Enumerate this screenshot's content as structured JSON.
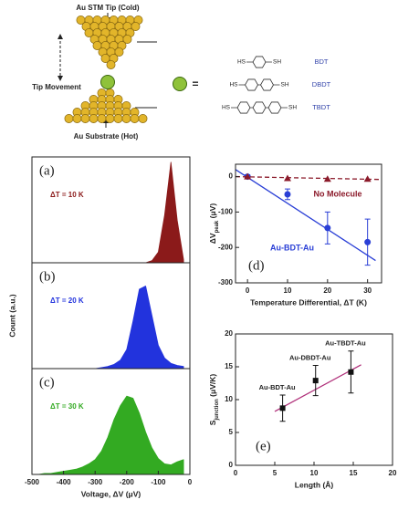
{
  "diagram": {
    "tip_label": "Au STM Tip (Cold)",
    "movement_label": "Tip Movement",
    "substrate_label": "Au Substrate (Hot)",
    "equals": "=",
    "molecules": [
      {
        "left": "HS",
        "right": "SH",
        "name": "BDT"
      },
      {
        "left": "HS",
        "right": "SH",
        "name": "DBDT"
      },
      {
        "left": "HS",
        "right": "SH",
        "name": "TBDT"
      }
    ]
  },
  "chart_data": [
    {
      "type": "area",
      "panel": "(a)",
      "annotation": "ΔT = 10 K",
      "color": "#8b1a1a",
      "x": [
        -500,
        -480,
        -460,
        -440,
        -420,
        -400,
        -380,
        -360,
        -340,
        -320,
        -300,
        -280,
        -260,
        -240,
        -220,
        -200,
        -180,
        -160,
        -140,
        -120,
        -100,
        -80,
        -60,
        -40,
        -20
      ],
      "values": [
        0,
        0,
        0,
        0,
        0,
        0,
        0,
        0,
        0,
        0,
        0,
        0,
        0,
        0,
        0,
        0,
        0,
        0,
        0,
        2,
        10,
        45,
        95,
        40,
        3
      ],
      "xlim": [
        -500,
        0
      ],
      "ylim": [
        0,
        100
      ]
    },
    {
      "type": "area",
      "panel": "(b)",
      "annotation": "ΔT = 20 K",
      "color": "#2233dd",
      "ylabel": "Count (a.u.)",
      "x": [
        -500,
        -480,
        -460,
        -440,
        -420,
        -400,
        -380,
        -360,
        -340,
        -320,
        -300,
        -280,
        -260,
        -240,
        -220,
        -200,
        -180,
        -160,
        -140,
        -120,
        -100,
        -80,
        -60,
        -40,
        -20
      ],
      "values": [
        0,
        0,
        0,
        0,
        0,
        0,
        0,
        0,
        0,
        0,
        0,
        1,
        2,
        4,
        8,
        18,
        45,
        75,
        78,
        50,
        22,
        10,
        5,
        3,
        2
      ],
      "xlim": [
        -500,
        0
      ],
      "ylim": [
        0,
        100
      ]
    },
    {
      "type": "area",
      "panel": "(c)",
      "annotation": "ΔT = 30 K",
      "color": "#33aa22",
      "xlabel": "Voltage, ΔV (μV)",
      "x": [
        -500,
        -480,
        -460,
        -440,
        -420,
        -400,
        -380,
        -360,
        -340,
        -320,
        -300,
        -280,
        -260,
        -240,
        -220,
        -200,
        -180,
        -160,
        -140,
        -120,
        -100,
        -80,
        -60,
        -40,
        -20
      ],
      "values": [
        0,
        0,
        1,
        1,
        2,
        3,
        4,
        5,
        7,
        10,
        14,
        22,
        35,
        52,
        65,
        74,
        72,
        58,
        40,
        25,
        15,
        10,
        9,
        12,
        14
      ],
      "xlim": [
        -500,
        0
      ],
      "ylim": [
        0,
        100
      ],
      "xticks": [
        -500,
        -400,
        -300,
        -200,
        -100,
        0
      ]
    },
    {
      "type": "scatter",
      "panel": "(d)",
      "xlabel": "Temperature Differential, ΔT (K)",
      "ylabel": [
        "ΔV",
        "peak",
        " (μV)"
      ],
      "xlim": [
        -3,
        33.5
      ],
      "ylim": [
        -300,
        35
      ],
      "xticks": [
        0,
        10,
        20,
        30
      ],
      "yticks": [
        -300,
        -200,
        -100,
        0
      ],
      "series": [
        {
          "name": "Au-BDT-Au",
          "color": "#2a3fd6",
          "marker": "circle",
          "x": [
            0,
            10,
            20,
            30
          ],
          "values": [
            0,
            -50,
            -145,
            -185
          ],
          "errors": [
            5,
            15,
            45,
            65
          ],
          "fit": {
            "x": [
              -3,
              32
            ],
            "values": [
              20,
              -237
            ],
            "dash": false
          }
        },
        {
          "name": "No Molecule",
          "color": "#8b1a2a",
          "marker": "triangle",
          "x": [
            0,
            10,
            20,
            30
          ],
          "values": [
            0,
            -5,
            -7,
            -7
          ],
          "fit": {
            "x": [
              -3,
              33
            ],
            "values": [
              0,
              -8
            ],
            "dash": true
          }
        }
      ]
    },
    {
      "type": "scatter",
      "panel": "(e)",
      "xlabel": "Length (Å)",
      "ylabel": [
        "S",
        "junction",
        " (μV/K)"
      ],
      "xlim": [
        0,
        20
      ],
      "ylim": [
        0,
        20
      ],
      "xticks": [
        0,
        5,
        10,
        15,
        20
      ],
      "yticks": [
        0,
        5,
        10,
        15,
        20
      ],
      "series": [
        {
          "color": "#111111",
          "marker": "square",
          "x": [
            6,
            10.2,
            14.7
          ],
          "values": [
            8.7,
            12.9,
            14.2
          ],
          "errors": [
            2,
            2.3,
            3.2
          ],
          "point_labels": [
            "Au-BDT-Au",
            "Au-DBDT-Au",
            "Au-TBDT-Au"
          ],
          "fit": {
            "x": [
              5,
              16
            ],
            "values": [
              8.2,
              15.3
            ],
            "color": "#b0307a",
            "dash": false
          }
        }
      ]
    }
  ]
}
